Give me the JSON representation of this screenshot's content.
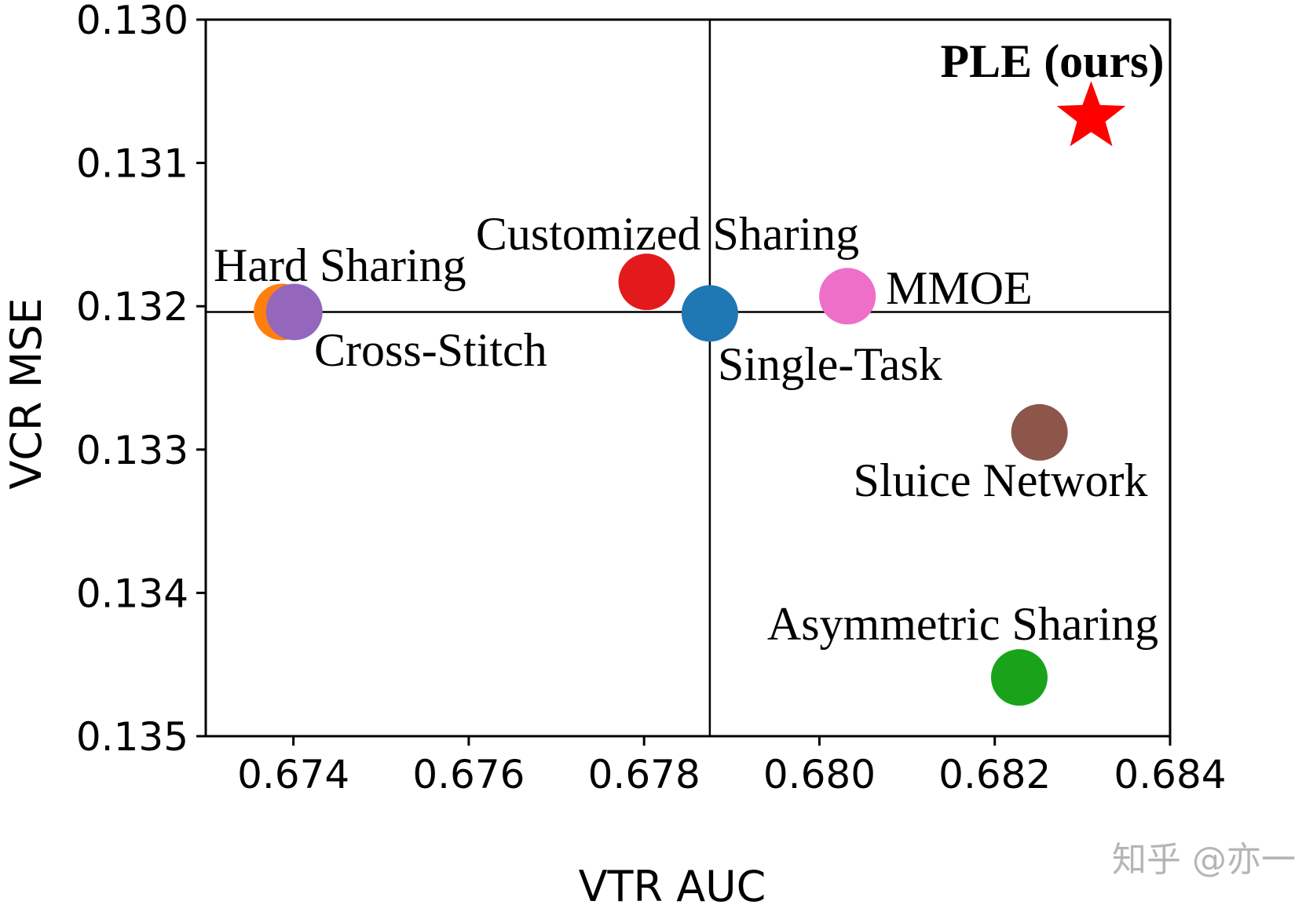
{
  "chart_data": {
    "type": "scatter",
    "xlabel": "VTR AUC",
    "ylabel": "VCR MSE",
    "xlim": [
      0.673,
      0.684
    ],
    "ylim": [
      0.135,
      0.13
    ],
    "y_inverted": true,
    "grid": false,
    "x_ticks": [
      {
        "value": 0.674,
        "label": "0.674"
      },
      {
        "value": 0.676,
        "label": "0.676"
      },
      {
        "value": 0.678,
        "label": "0.678"
      },
      {
        "value": 0.68,
        "label": "0.680"
      },
      {
        "value": 0.682,
        "label": "0.682"
      },
      {
        "value": 0.684,
        "label": "0.684"
      }
    ],
    "y_ticks": [
      {
        "value": 0.13,
        "label": "0.130"
      },
      {
        "value": 0.131,
        "label": "0.131"
      },
      {
        "value": 0.132,
        "label": "0.132"
      },
      {
        "value": 0.133,
        "label": "0.133"
      },
      {
        "value": 0.134,
        "label": "0.134"
      },
      {
        "value": 0.135,
        "label": "0.135"
      }
    ],
    "reference_lines": {
      "x": 0.67875,
      "y": 0.13204
    },
    "points": [
      {
        "name": "Hard Sharing",
        "x": 0.67387,
        "y": 0.13204,
        "color": "#ff7f0e",
        "marker": "circle",
        "label_anchor": "above-right",
        "bold": false
      },
      {
        "name": "Cross-Stitch",
        "x": 0.67401,
        "y": 0.13204,
        "color": "#9467bd",
        "marker": "circle",
        "label_anchor": "below-right",
        "bold": false
      },
      {
        "name": "Customized Sharing",
        "x": 0.67803,
        "y": 0.13183,
        "color": "#e31a1c",
        "marker": "circle",
        "label_anchor": "above",
        "bold": false
      },
      {
        "name": "Single-Task",
        "x": 0.67875,
        "y": 0.13205,
        "color": "#1f77b4",
        "marker": "circle",
        "label_anchor": "below-right",
        "bold": false
      },
      {
        "name": "MMOE",
        "x": 0.68032,
        "y": 0.13193,
        "color": "#ee6fc8",
        "marker": "circle",
        "label_anchor": "right",
        "bold": false
      },
      {
        "name": "Sluice Network",
        "x": 0.68251,
        "y": 0.13288,
        "color": "#8c564b",
        "marker": "circle",
        "label_anchor": "below",
        "bold": false
      },
      {
        "name": "Asymmetric Sharing",
        "x": 0.68228,
        "y": 0.13459,
        "color": "#1aa31a",
        "marker": "circle",
        "label_anchor": "above",
        "bold": false
      },
      {
        "name": "PLE (ours)",
        "x": 0.6831,
        "y": 0.13068,
        "color": "#ff0000",
        "marker": "star",
        "label_anchor": "above",
        "bold": true
      }
    ]
  },
  "watermark": "知乎 @亦一"
}
